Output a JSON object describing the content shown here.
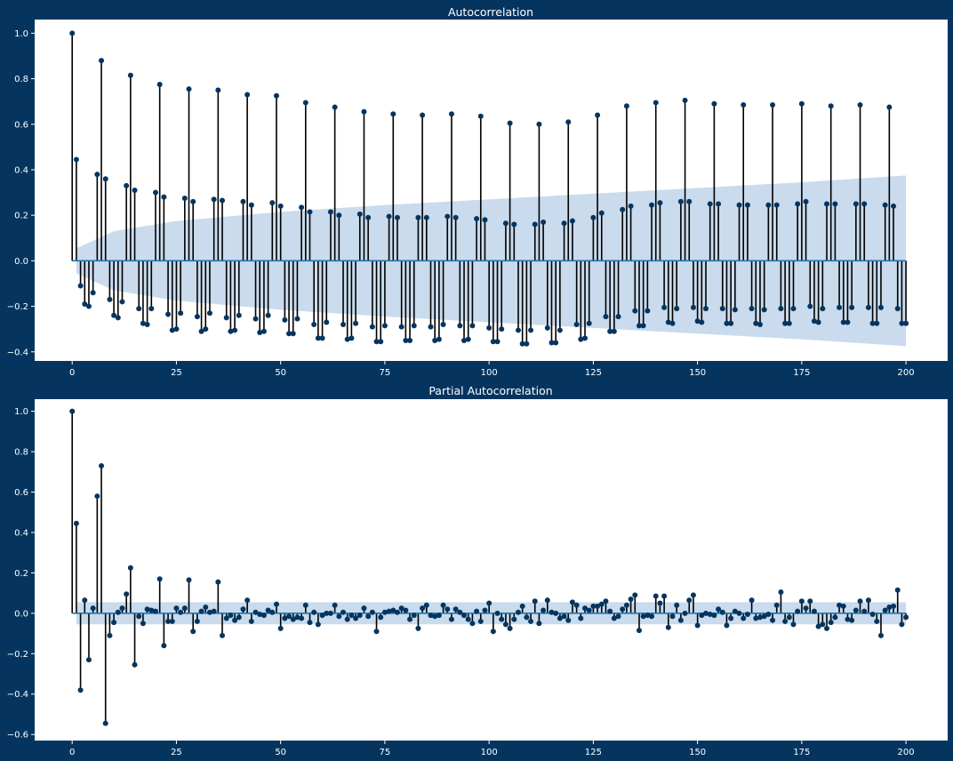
{
  "figure": {
    "background": "#05355f",
    "axes_background": "#ffffff",
    "text_color": "#ffffff"
  },
  "chart_data": [
    {
      "type": "stem",
      "title": "Autocorrelation",
      "xlabel": "",
      "ylabel": "",
      "xlim": [
        -9,
        210
      ],
      "ylim": [
        -0.44,
        1.06
      ],
      "xticks": [
        0,
        25,
        50,
        75,
        100,
        125,
        150,
        175,
        200
      ],
      "yticks": [
        -0.4,
        -0.2,
        0.0,
        0.2,
        0.4,
        0.6,
        0.8,
        1.0
      ],
      "ytick_labels": [
        "−0.4",
        "−0.2",
        "0.0",
        "0.2",
        "0.4",
        "0.6",
        "0.8",
        "1.0"
      ],
      "grid": false,
      "marker_color": "#05355f",
      "stem_color": "#000000",
      "zero_line_color": "#1f77b4",
      "confidence_band": {
        "color": "#c6d9ec",
        "x": [
          1,
          10,
          25,
          50,
          75,
          100,
          125,
          150,
          175,
          200
        ],
        "upper": [
          0.055,
          0.13,
          0.175,
          0.215,
          0.245,
          0.27,
          0.295,
          0.32,
          0.345,
          0.375
        ]
      },
      "lags": [
        0,
        1,
        2,
        3,
        4,
        5,
        6,
        7,
        8,
        9,
        10,
        11,
        12,
        13,
        14,
        15,
        16,
        17,
        18,
        19,
        20,
        21,
        22,
        23,
        24,
        25,
        26,
        27,
        28,
        29,
        30,
        31,
        32,
        33,
        34,
        35,
        36,
        37,
        38,
        39,
        40,
        41,
        42,
        43,
        44,
        45,
        46,
        47,
        48,
        49,
        50,
        51,
        52,
        53,
        54,
        55,
        56,
        57,
        58,
        59,
        60,
        61,
        62,
        63,
        64,
        65,
        66,
        67,
        68,
        69,
        70,
        71,
        72,
        73,
        74,
        75,
        76,
        77,
        78,
        79,
        80,
        81,
        82,
        83,
        84,
        85,
        86,
        87,
        88,
        89,
        90,
        91,
        92,
        93,
        94,
        95,
        96,
        97,
        98,
        99,
        100,
        101,
        102,
        103,
        104,
        105,
        106,
        107,
        108,
        109,
        110,
        111,
        112,
        113,
        114,
        115,
        116,
        117,
        118,
        119,
        120,
        121,
        122,
        123,
        124,
        125,
        126,
        127,
        128,
        129,
        130,
        131,
        132,
        133,
        134,
        135,
        136,
        137,
        138,
        139,
        140,
        141,
        142,
        143,
        144,
        145,
        146,
        147,
        148,
        149,
        150,
        151,
        152,
        153,
        154,
        155,
        156,
        157,
        158,
        159,
        160,
        161,
        162,
        163,
        164,
        165,
        166,
        167,
        168,
        169,
        170,
        171,
        172,
        173,
        174,
        175,
        176,
        177,
        178,
        179,
        180,
        181,
        182,
        183,
        184,
        185,
        186,
        187,
        188,
        189,
        190,
        191,
        192,
        193,
        194,
        195,
        196,
        197,
        198,
        199,
        200
      ],
      "values": [
        1.0,
        0.445,
        -0.11,
        -0.19,
        -0.2,
        -0.14,
        0.38,
        0.88,
        0.36,
        -0.17,
        -0.24,
        -0.25,
        -0.18,
        0.33,
        0.815,
        0.31,
        -0.21,
        -0.275,
        -0.28,
        -0.21,
        0.3,
        0.775,
        0.28,
        -0.235,
        -0.305,
        -0.3,
        -0.23,
        0.275,
        0.755,
        0.26,
        -0.245,
        -0.31,
        -0.3,
        -0.23,
        0.27,
        0.75,
        0.265,
        -0.25,
        -0.31,
        -0.305,
        -0.24,
        0.26,
        0.73,
        0.245,
        -0.255,
        -0.315,
        -0.31,
        -0.24,
        0.255,
        0.725,
        0.24,
        -0.26,
        -0.32,
        -0.32,
        -0.255,
        0.235,
        0.695,
        0.215,
        -0.28,
        -0.34,
        -0.34,
        -0.27,
        0.215,
        0.675,
        0.2,
        -0.28,
        -0.345,
        -0.34,
        -0.275,
        0.205,
        0.655,
        0.19,
        -0.29,
        -0.355,
        -0.355,
        -0.285,
        0.195,
        0.645,
        0.19,
        -0.29,
        -0.35,
        -0.35,
        -0.285,
        0.19,
        0.64,
        0.19,
        -0.29,
        -0.35,
        -0.345,
        -0.28,
        0.195,
        0.645,
        0.19,
        -0.285,
        -0.35,
        -0.345,
        -0.285,
        0.185,
        0.635,
        0.18,
        -0.295,
        -0.355,
        -0.355,
        -0.3,
        0.165,
        0.605,
        0.16,
        -0.305,
        -0.365,
        -0.365,
        -0.305,
        0.16,
        0.6,
        0.17,
        -0.295,
        -0.36,
        -0.36,
        -0.305,
        0.165,
        0.61,
        0.175,
        -0.28,
        -0.345,
        -0.34,
        -0.275,
        0.19,
        0.64,
        0.21,
        -0.245,
        -0.31,
        -0.31,
        -0.245,
        0.225,
        0.68,
        0.24,
        -0.22,
        -0.285,
        -0.285,
        -0.22,
        0.245,
        0.695,
        0.255,
        -0.205,
        -0.27,
        -0.275,
        -0.21,
        0.26,
        0.705,
        0.26,
        -0.205,
        -0.265,
        -0.27,
        -0.21,
        0.25,
        0.69,
        0.25,
        -0.21,
        -0.275,
        -0.275,
        -0.215,
        0.245,
        0.685,
        0.245,
        -0.21,
        -0.275,
        -0.28,
        -0.215,
        0.245,
        0.685,
        0.245,
        -0.21,
        -0.275,
        -0.275,
        -0.21,
        0.25,
        0.69,
        0.26,
        -0.2,
        -0.265,
        -0.27,
        -0.21,
        0.25,
        0.68,
        0.25,
        -0.205,
        -0.27,
        -0.27,
        -0.205,
        0.25,
        0.685,
        0.25,
        -0.205,
        -0.275,
        -0.275,
        -0.205,
        0.245,
        0.675,
        0.24,
        -0.21,
        -0.275,
        -0.275
      ]
    },
    {
      "type": "stem",
      "title": "Partial Autocorrelation",
      "xlabel": "",
      "ylabel": "",
      "xlim": [
        -9,
        210
      ],
      "ylim": [
        -0.63,
        1.06
      ],
      "xticks": [
        0,
        25,
        50,
        75,
        100,
        125,
        150,
        175,
        200
      ],
      "yticks": [
        -0.6,
        -0.4,
        -0.2,
        0.0,
        0.2,
        0.4,
        0.6,
        0.8,
        1.0
      ],
      "ytick_labels": [
        "−0.6",
        "−0.4",
        "−0.2",
        "0.0",
        "0.2",
        "0.4",
        "0.6",
        "0.8",
        "1.0"
      ],
      "grid": false,
      "marker_color": "#05355f",
      "stem_color": "#000000",
      "zero_line_color": "#1f77b4",
      "confidence_band": {
        "color": "#c6d9ec",
        "x": [
          1,
          200
        ],
        "upper": [
          0.055,
          0.055
        ]
      },
      "lags": [
        0,
        1,
        2,
        3,
        4,
        5,
        6,
        7,
        8,
        9,
        10,
        11,
        12,
        13,
        14,
        15,
        16,
        17,
        18,
        19,
        20,
        21,
        22,
        23,
        24,
        25,
        26,
        27,
        28,
        29,
        30,
        31,
        32,
        33,
        34,
        35,
        36,
        37,
        38,
        39,
        40,
        41,
        42,
        43,
        44,
        45,
        46,
        47,
        48,
        49,
        50,
        51,
        52,
        53,
        54,
        55,
        56,
        57,
        58,
        59,
        60,
        61,
        62,
        63,
        64,
        65,
        66,
        67,
        68,
        69,
        70,
        71,
        72,
        73,
        74,
        75,
        76,
        77,
        78,
        79,
        80,
        81,
        82,
        83,
        84,
        85,
        86,
        87,
        88,
        89,
        90,
        91,
        92,
        93,
        94,
        95,
        96,
        97,
        98,
        99,
        100,
        101,
        102,
        103,
        104,
        105,
        106,
        107,
        108,
        109,
        110,
        111,
        112,
        113,
        114,
        115,
        116,
        117,
        118,
        119,
        120,
        121,
        122,
        123,
        124,
        125,
        126,
        127,
        128,
        129,
        130,
        131,
        132,
        133,
        134,
        135,
        136,
        137,
        138,
        139,
        140,
        141,
        142,
        143,
        144,
        145,
        146,
        147,
        148,
        149,
        150,
        151,
        152,
        153,
        154,
        155,
        156,
        157,
        158,
        159,
        160,
        161,
        162,
        163,
        164,
        165,
        166,
        167,
        168,
        169,
        170,
        171,
        172,
        173,
        174,
        175,
        176,
        177,
        178,
        179,
        180,
        181,
        182,
        183,
        184,
        185,
        186,
        187,
        188,
        189,
        190,
        191,
        192,
        193,
        194,
        195,
        196,
        197,
        198,
        199,
        200
      ],
      "values": [
        1.0,
        0.445,
        -0.38,
        0.065,
        -0.23,
        0.025,
        0.58,
        0.73,
        -0.545,
        -0.11,
        -0.045,
        0.005,
        0.025,
        0.095,
        0.225,
        -0.255,
        -0.015,
        -0.05,
        0.02,
        0.015,
        0.01,
        0.17,
        -0.16,
        -0.04,
        -0.04,
        0.025,
        0.005,
        0.025,
        0.165,
        -0.09,
        -0.04,
        0.01,
        0.03,
        0.005,
        0.01,
        0.155,
        -0.11,
        -0.025,
        -0.01,
        -0.035,
        -0.02,
        0.02,
        0.065,
        -0.04,
        0.005,
        -0.005,
        -0.01,
        0.015,
        0.005,
        0.045,
        -0.075,
        -0.025,
        -0.015,
        -0.03,
        -0.02,
        -0.025,
        0.04,
        -0.045,
        0.005,
        -0.055,
        -0.01,
        0.0,
        0.0,
        0.04,
        -0.015,
        0.005,
        -0.03,
        -0.01,
        -0.025,
        -0.01,
        0.025,
        -0.015,
        0.005,
        -0.09,
        -0.02,
        0.005,
        0.01,
        0.015,
        0.005,
        0.025,
        0.015,
        -0.03,
        -0.01,
        -0.075,
        0.025,
        0.04,
        -0.01,
        -0.015,
        -0.01,
        0.04,
        0.02,
        -0.03,
        0.02,
        0.005,
        -0.01,
        -0.03,
        -0.05,
        0.01,
        -0.04,
        0.015,
        0.05,
        -0.09,
        0.0,
        -0.03,
        -0.055,
        -0.075,
        -0.03,
        0.005,
        0.035,
        -0.02,
        -0.04,
        0.06,
        -0.05,
        0.015,
        0.065,
        0.005,
        0.0,
        -0.025,
        -0.015,
        -0.035,
        0.055,
        0.04,
        -0.025,
        0.025,
        0.015,
        0.035,
        0.035,
        0.045,
        0.06,
        0.01,
        -0.025,
        -0.015,
        0.02,
        0.04,
        0.07,
        0.09,
        -0.085,
        -0.015,
        -0.01,
        -0.015,
        0.085,
        0.05,
        0.085,
        -0.07,
        -0.015,
        0.04,
        -0.035,
        0.0,
        0.065,
        0.09,
        -0.06,
        -0.01,
        0.0,
        -0.005,
        -0.01,
        0.02,
        0.005,
        -0.06,
        -0.025,
        0.01,
        0.0,
        -0.025,
        -0.005,
        0.065,
        -0.025,
        -0.02,
        -0.015,
        -0.005,
        -0.035,
        0.04,
        0.105,
        -0.04,
        -0.02,
        -0.055,
        0.01,
        0.06,
        0.025,
        0.06,
        0.01,
        -0.065,
        -0.055,
        -0.075,
        -0.045,
        -0.02,
        0.04,
        0.035,
        -0.03,
        -0.035,
        0.015,
        0.06,
        0.01,
        0.065,
        -0.005,
        -0.04,
        -0.11,
        0.015,
        0.03,
        0.035,
        0.115,
        -0.055,
        -0.02,
        -0.065,
        -0.025
      ]
    }
  ]
}
